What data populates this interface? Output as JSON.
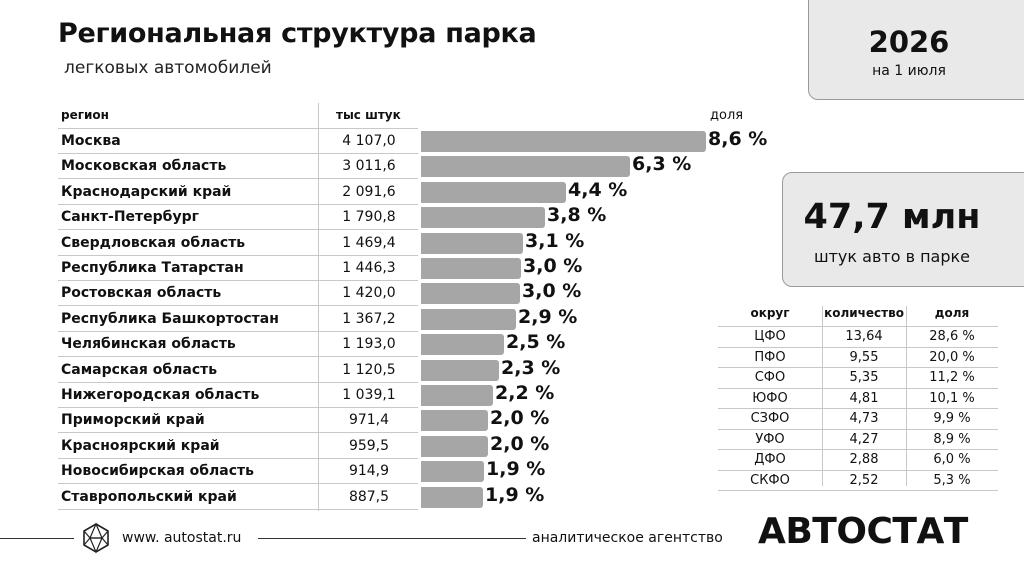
{
  "header": {
    "title": "Региональная структура парка",
    "subtitle": "легковых автомобилей"
  },
  "info": {
    "year": "2026",
    "date": "на 1 июля",
    "total": "47,7 млн",
    "total_caption": "штук авто в парке"
  },
  "chart_data": {
    "type": "bar",
    "orientation": "horizontal",
    "columns": {
      "region": "регион",
      "count": "тыс штук",
      "share": "доля"
    },
    "categories": [
      "Москва",
      "Московская область",
      "Краснодарский край",
      "Санкт-Петербург",
      "Свердловская область",
      "Республика Татарстан",
      "Ростовская область",
      "Республика Башкортостан",
      "Челябинская область",
      "Самарская область",
      "Нижегородская область",
      "Приморский край",
      "Красноярский край",
      "Новосибирская область",
      "Ставропольский край"
    ],
    "values": [
      4107.0,
      3011.6,
      2091.6,
      1790.8,
      1469.4,
      1446.3,
      1420.0,
      1367.2,
      1193.0,
      1120.5,
      1039.1,
      971.4,
      959.5,
      914.9,
      887.5
    ],
    "value_labels": [
      "4 107,0",
      "3 011,6",
      "2 091,6",
      "1 790,8",
      "1 469,4",
      "1 446,3",
      "1 420,0",
      "1 367,2",
      "1 193,0",
      "1 120,5",
      "1 039,1",
      "971,4",
      "959,5",
      "914,9",
      "887,5"
    ],
    "share_labels": [
      "8,6 %",
      "6,3 %",
      "4,4 %",
      "3,8 %",
      "3,1 %",
      "3,0 %",
      "3,0 %",
      "2,9 %",
      "2,5 %",
      "2,3 %",
      "2,2 %",
      "2,0 %",
      "2,0 %",
      "1,9 %",
      "1,9 %"
    ],
    "bar_color": "#a6a6a6"
  },
  "districts": {
    "headers": [
      "округ",
      "количество",
      "доля"
    ],
    "rows": [
      [
        "ЦФО",
        "13,64",
        "28,6 %"
      ],
      [
        "ПФО",
        "9,55",
        "20,0 %"
      ],
      [
        "СФО",
        "5,35",
        "11,2 %"
      ],
      [
        "ЮФО",
        "4,81",
        "10,1 %"
      ],
      [
        "СЗФО",
        "4,73",
        "9,9 %"
      ],
      [
        "УФО",
        "4,27",
        "8,9 %"
      ],
      [
        "ДФО",
        "2,88",
        "6,0 %"
      ],
      [
        "СКФО",
        "2,52",
        "5,3 %"
      ]
    ]
  },
  "footer": {
    "site": "www. autostat.ru",
    "agency": "аналитическое агентство",
    "brand": "АВТОСТАТ",
    "logo_icon": "hexagon-logo-icon"
  }
}
